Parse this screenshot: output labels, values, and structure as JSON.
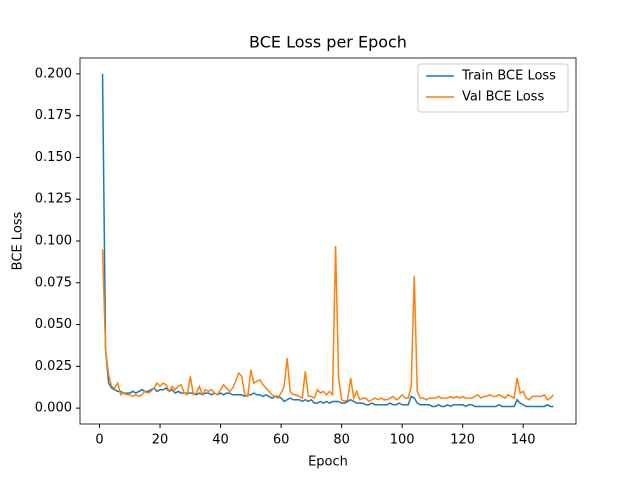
{
  "chart_data": {
    "type": "line",
    "title": "BCE Loss per Epoch",
    "x_label": "Epoch",
    "y_label": "BCE Loss",
    "x": [
      1,
      2,
      3,
      4,
      5,
      6,
      7,
      8,
      9,
      10,
      11,
      12,
      13,
      14,
      15,
      16,
      17,
      18,
      19,
      20,
      21,
      22,
      23,
      24,
      25,
      26,
      27,
      28,
      29,
      30,
      31,
      32,
      33,
      34,
      35,
      36,
      37,
      38,
      39,
      40,
      41,
      42,
      43,
      44,
      45,
      46,
      47,
      48,
      49,
      50,
      51,
      52,
      53,
      54,
      55,
      56,
      57,
      58,
      59,
      60,
      61,
      62,
      63,
      64,
      65,
      66,
      67,
      68,
      69,
      70,
      71,
      72,
      73,
      74,
      75,
      76,
      77,
      78,
      79,
      80,
      81,
      82,
      83,
      84,
      85,
      86,
      87,
      88,
      89,
      90,
      91,
      92,
      93,
      94,
      95,
      96,
      97,
      98,
      99,
      100,
      101,
      102,
      103,
      104,
      105,
      106,
      107,
      108,
      109,
      110,
      111,
      112,
      113,
      114,
      115,
      116,
      117,
      118,
      119,
      120,
      121,
      122,
      123,
      124,
      125,
      126,
      127,
      128,
      129,
      130,
      131,
      132,
      133,
      134,
      135,
      136,
      137,
      138,
      139,
      140,
      141,
      142,
      143,
      144,
      145,
      146,
      147,
      148,
      149,
      150
    ],
    "series": [
      {
        "name": "Train BCE Loss",
        "color": "#1f77b4",
        "values": [
          0.2,
          0.035,
          0.015,
          0.012,
          0.011,
          0.01,
          0.01,
          0.009,
          0.009,
          0.009,
          0.01,
          0.009,
          0.01,
          0.011,
          0.01,
          0.01,
          0.011,
          0.012,
          0.01,
          0.011,
          0.011,
          0.012,
          0.01,
          0.011,
          0.009,
          0.01,
          0.009,
          0.009,
          0.009,
          0.009,
          0.009,
          0.008,
          0.009,
          0.008,
          0.009,
          0.009,
          0.008,
          0.009,
          0.008,
          0.009,
          0.008,
          0.009,
          0.009,
          0.008,
          0.008,
          0.008,
          0.008,
          0.007,
          0.008,
          0.008,
          0.009,
          0.008,
          0.008,
          0.007,
          0.008,
          0.007,
          0.006,
          0.007,
          0.007,
          0.006,
          0.004,
          0.005,
          0.006,
          0.005,
          0.005,
          0.005,
          0.004,
          0.005,
          0.004,
          0.005,
          0.003,
          0.003,
          0.004,
          0.003,
          0.004,
          0.003,
          0.004,
          0.004,
          0.004,
          0.003,
          0.003,
          0.004,
          0.005,
          0.004,
          0.003,
          0.003,
          0.003,
          0.002,
          0.002,
          0.003,
          0.002,
          0.002,
          0.002,
          0.002,
          0.002,
          0.003,
          0.002,
          0.002,
          0.003,
          0.002,
          0.002,
          0.002,
          0.007,
          0.006,
          0.003,
          0.002,
          0.002,
          0.002,
          0.002,
          0.001,
          0.001,
          0.002,
          0.001,
          0.001,
          0.002,
          0.001,
          0.002,
          0.002,
          0.002,
          0.002,
          0.001,
          0.002,
          0.002,
          0.001,
          0.001,
          0.001,
          0.001,
          0.001,
          0.001,
          0.001,
          0.001,
          0.002,
          0.001,
          0.001,
          0.001,
          0.001,
          0.001,
          0.005,
          0.003,
          0.002,
          0.001,
          0.001,
          0.001,
          0.001,
          0.001,
          0.001,
          0.001,
          0.002,
          0.001,
          0.001
        ]
      },
      {
        "name": "Val BCE Loss",
        "color": "#ff7f0e",
        "values": [
          0.095,
          0.035,
          0.02,
          0.013,
          0.012,
          0.015,
          0.008,
          0.009,
          0.008,
          0.008,
          0.007,
          0.008,
          0.007,
          0.008,
          0.01,
          0.009,
          0.01,
          0.012,
          0.015,
          0.013,
          0.015,
          0.014,
          0.01,
          0.013,
          0.011,
          0.013,
          0.014,
          0.009,
          0.008,
          0.019,
          0.008,
          0.009,
          0.013,
          0.008,
          0.011,
          0.01,
          0.011,
          0.009,
          0.008,
          0.011,
          0.014,
          0.012,
          0.01,
          0.012,
          0.016,
          0.021,
          0.019,
          0.008,
          0.007,
          0.023,
          0.015,
          0.016,
          0.017,
          0.014,
          0.012,
          0.01,
          0.008,
          0.007,
          0.006,
          0.009,
          0.013,
          0.03,
          0.01,
          0.008,
          0.008,
          0.007,
          0.006,
          0.022,
          0.007,
          0.007,
          0.006,
          0.011,
          0.009,
          0.01,
          0.008,
          0.01,
          0.008,
          0.097,
          0.018,
          0.005,
          0.004,
          0.005,
          0.018,
          0.006,
          0.01,
          0.005,
          0.006,
          0.006,
          0.004,
          0.005,
          0.006,
          0.005,
          0.006,
          0.005,
          0.005,
          0.006,
          0.007,
          0.005,
          0.006,
          0.008,
          0.006,
          0.006,
          0.013,
          0.079,
          0.01,
          0.006,
          0.006,
          0.005,
          0.006,
          0.006,
          0.006,
          0.007,
          0.006,
          0.006,
          0.006,
          0.007,
          0.006,
          0.007,
          0.006,
          0.007,
          0.006,
          0.006,
          0.006,
          0.007,
          0.008,
          0.006,
          0.007,
          0.007,
          0.008,
          0.007,
          0.007,
          0.008,
          0.007,
          0.006,
          0.008,
          0.007,
          0.006,
          0.018,
          0.009,
          0.01,
          0.006,
          0.005,
          0.007,
          0.007,
          0.007,
          0.007,
          0.008,
          0.005,
          0.006,
          0.008
        ]
      }
    ],
    "xlim": [
      -6.45,
      157.45
    ],
    "ylim": [
      -0.0095,
      0.2095
    ],
    "xticks": [
      0,
      20,
      40,
      60,
      80,
      100,
      120,
      140
    ],
    "yticks": [
      {
        "value": 0,
        "label": "0.000"
      },
      {
        "value": 0.025,
        "label": "0.025"
      },
      {
        "value": 0.05,
        "label": "0.050"
      },
      {
        "value": 0.075,
        "label": "0.075"
      },
      {
        "value": 0.1,
        "label": "0.100"
      },
      {
        "value": 0.125,
        "label": "0.125"
      },
      {
        "value": 0.15,
        "label": "0.150"
      },
      {
        "value": 0.175,
        "label": "0.175"
      },
      {
        "value": 0.2,
        "label": "0.200"
      }
    ],
    "grid": false,
    "legend": "upper right"
  }
}
